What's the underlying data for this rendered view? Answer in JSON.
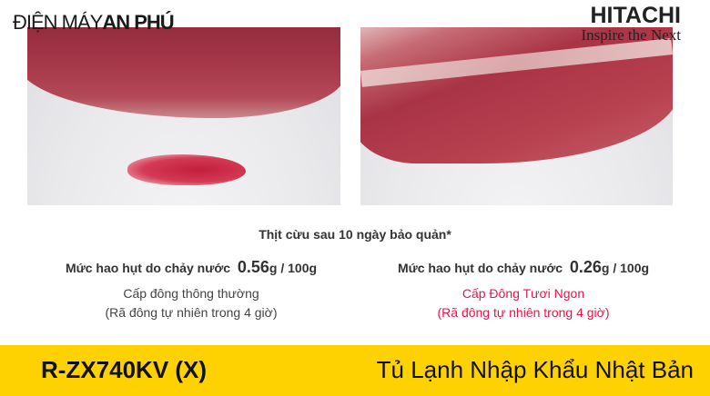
{
  "brand_left": {
    "part1": "ĐIỆN MÁY",
    "part2": "AN PHÚ"
  },
  "brand_right": {
    "name": "HITACHI",
    "tagline": "Inspire the Next"
  },
  "caption": "Thịt cừu sau 10 ngày bảo quản*",
  "left": {
    "loss_label": "Mức hao hụt do chảy nước",
    "loss_value": "0.56",
    "loss_unit": "g / 100g",
    "mode": "Cấp đông thông thường",
    "note": "(Rã đông tự nhiên trong 4 giờ)"
  },
  "right": {
    "loss_label": "Mức hao hụt do chảy nước",
    "loss_value": "0.26",
    "loss_unit": "g / 100g",
    "mode": "Cấp Đông Tươi Ngon",
    "note": "(Rã đông tự nhiên trong 4 giờ)"
  },
  "footer": {
    "model": "R-ZX740KV (X)",
    "title": "Tủ Lạnh Nhập Khẩu Nhật Bản"
  },
  "colors": {
    "accent_red": "#e5174a",
    "bar_yellow": "#fdd200"
  }
}
